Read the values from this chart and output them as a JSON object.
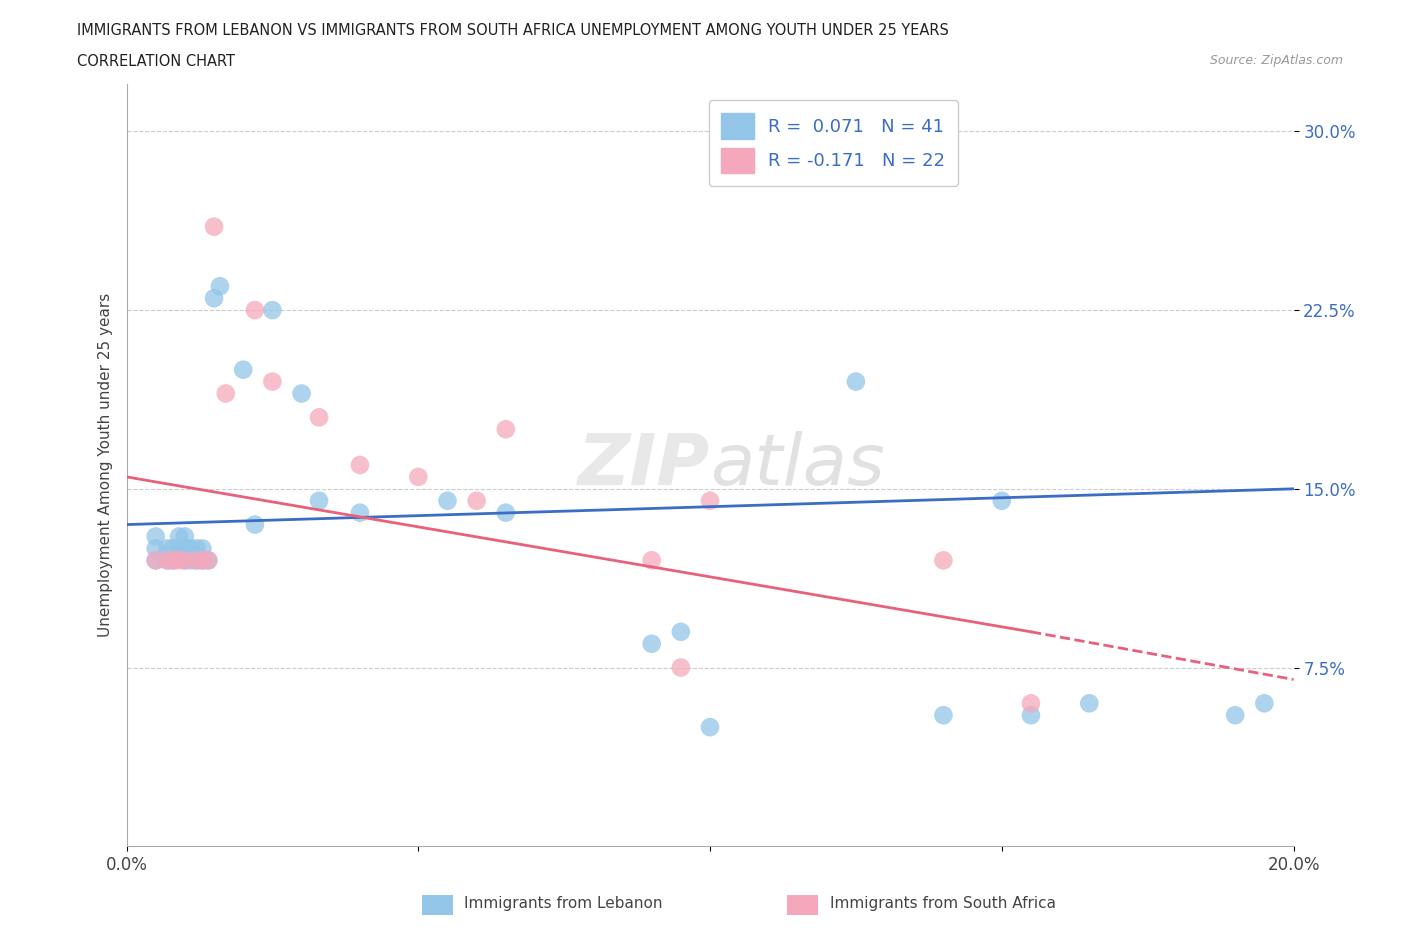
{
  "title_line1": "IMMIGRANTS FROM LEBANON VS IMMIGRANTS FROM SOUTH AFRICA UNEMPLOYMENT AMONG YOUTH UNDER 25 YEARS",
  "title_line2": "CORRELATION CHART",
  "source": "Source: ZipAtlas.com",
  "ylabel": "Unemployment Among Youth under 25 years",
  "xlim": [
    0.0,
    0.2
  ],
  "ylim": [
    0.0,
    0.32
  ],
  "yticks": [
    0.075,
    0.15,
    0.225,
    0.3
  ],
  "ytick_labels": [
    "7.5%",
    "15.0%",
    "22.5%",
    "30.0%"
  ],
  "xticks": [
    0.0,
    0.05,
    0.1,
    0.15,
    0.2
  ],
  "xtick_labels": [
    "0.0%",
    "",
    "",
    "",
    "20.0%"
  ],
  "R_lebanon": 0.071,
  "N_lebanon": 41,
  "R_south_africa": -0.171,
  "N_south_africa": 22,
  "color_lebanon": "#92C5E8",
  "color_south_africa": "#F5A8BC",
  "color_line_lebanon": "#3B6DC4",
  "color_line_south_africa": "#E8607A",
  "lebanon_x": [
    0.005,
    0.005,
    0.005,
    0.007,
    0.007,
    0.008,
    0.008,
    0.009,
    0.009,
    0.01,
    0.01,
    0.01,
    0.01,
    0.011,
    0.011,
    0.012,
    0.012,
    0.013,
    0.013,
    0.014,
    0.015,
    0.016,
    0.02,
    0.022,
    0.025,
    0.03,
    0.033,
    0.04,
    0.055,
    0.065,
    0.09,
    0.095,
    0.1,
    0.11,
    0.125,
    0.14,
    0.15,
    0.155,
    0.165,
    0.19,
    0.195
  ],
  "lebanon_y": [
    0.12,
    0.125,
    0.13,
    0.12,
    0.125,
    0.12,
    0.125,
    0.125,
    0.13,
    0.12,
    0.125,
    0.125,
    0.13,
    0.12,
    0.125,
    0.12,
    0.125,
    0.12,
    0.125,
    0.12,
    0.23,
    0.235,
    0.2,
    0.135,
    0.225,
    0.19,
    0.145,
    0.14,
    0.145,
    0.14,
    0.085,
    0.09,
    0.05,
    0.295,
    0.195,
    0.055,
    0.145,
    0.055,
    0.06,
    0.055,
    0.06
  ],
  "south_africa_x": [
    0.005,
    0.007,
    0.008,
    0.009,
    0.01,
    0.012,
    0.013,
    0.014,
    0.015,
    0.017,
    0.022,
    0.025,
    0.033,
    0.04,
    0.05,
    0.06,
    0.065,
    0.09,
    0.095,
    0.1,
    0.14,
    0.155
  ],
  "south_africa_y": [
    0.12,
    0.12,
    0.12,
    0.12,
    0.12,
    0.12,
    0.12,
    0.12,
    0.26,
    0.19,
    0.225,
    0.195,
    0.18,
    0.16,
    0.155,
    0.145,
    0.175,
    0.12,
    0.075,
    0.145,
    0.12,
    0.06
  ],
  "line_leb_x0": 0.0,
  "line_leb_y0": 0.135,
  "line_leb_x1": 0.2,
  "line_leb_y1": 0.15,
  "line_sa_x0": 0.0,
  "line_sa_y0": 0.155,
  "line_sa_x1": 0.155,
  "line_sa_y1": 0.09,
  "line_sa_dash_x0": 0.155,
  "line_sa_dash_y0": 0.09,
  "line_sa_dash_x1": 0.2,
  "line_sa_dash_y1": 0.07
}
